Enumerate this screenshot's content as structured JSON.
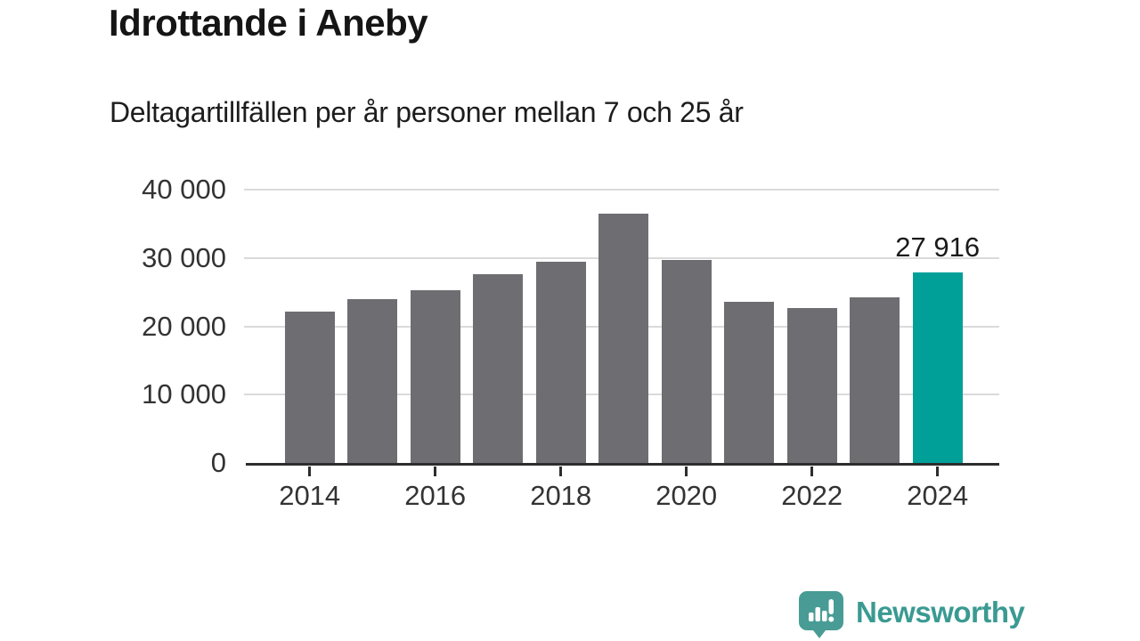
{
  "chart_data": {
    "type": "bar",
    "title": "Idrottande i Aneby",
    "subtitle": "Deltagartillfällen per år personer mellan 7 och 25 år",
    "categories": [
      "2014",
      "2015",
      "2016",
      "2017",
      "2018",
      "2019",
      "2020",
      "2021",
      "2022",
      "2023",
      "2024"
    ],
    "values": [
      22100,
      24000,
      25300,
      27600,
      29500,
      36500,
      29700,
      23600,
      22700,
      24300,
      27916
    ],
    "highlight_index": 10,
    "highlight_label": "27 916",
    "xlabel": "",
    "ylabel": "",
    "ylim": [
      0,
      40000
    ],
    "ytick_values": [
      0,
      10000,
      20000,
      30000,
      40000
    ],
    "ytick_labels": [
      "0",
      "10 000",
      "20 000",
      "30 000",
      "40 000"
    ],
    "xtick_labels": [
      "2014",
      "2016",
      "2018",
      "2020",
      "2022",
      "2024"
    ],
    "grid": true,
    "legend": false,
    "bar_color": "#6E6D72",
    "highlight_color": "#00A099",
    "gridline_color": "#DADADA",
    "axis_color": "#2D2D2D"
  },
  "footer": {
    "brand": "Newsworthy",
    "brand_color": "#3A9A92",
    "logo_icon": "bar-chart-speech-bubble-icon"
  }
}
